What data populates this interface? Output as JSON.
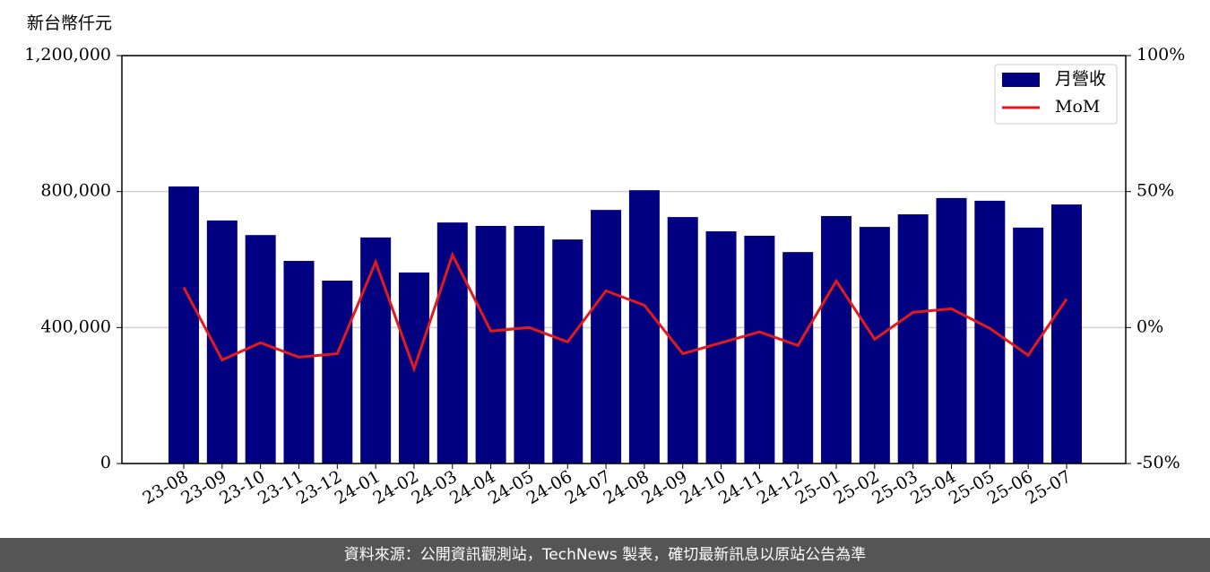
{
  "chart_data": {
    "type": "bar-line",
    "ylabel": "新台幣仟元",
    "footer": "資料來源：公開資訊觀測站，TechNews 製表，確切最新訊息以原站公告為準",
    "categories": [
      "23-08",
      "23-09",
      "23-10",
      "23-11",
      "23-12",
      "24-01",
      "24-02",
      "24-03",
      "24-04",
      "24-05",
      "24-06",
      "24-07",
      "24-08",
      "24-09",
      "24-10",
      "24-11",
      "24-12",
      "25-01",
      "25-02",
      "25-03",
      "25-04",
      "25-05",
      "25-06",
      "25-07"
    ],
    "series": [
      {
        "name": "月營收",
        "type": "bar",
        "color": "#000080",
        "values": [
          815000,
          715000,
          672000,
          596000,
          538000,
          665000,
          562000,
          709000,
          699000,
          699000,
          659000,
          746000,
          804000,
          725000,
          683000,
          670000,
          622000,
          728000,
          696000,
          733000,
          781000,
          773000,
          694000,
          762000
        ]
      },
      {
        "name": "MoM",
        "type": "line",
        "axis": "y2",
        "color": "#e31a1c",
        "values": [
          14.8,
          -11.9,
          -5.6,
          -10.9,
          -9.6,
          24.1,
          -15.2,
          26.7,
          -1.3,
          0,
          -5.3,
          13.5,
          8.2,
          -9.6,
          -5.6,
          -1.6,
          -6.6,
          17.1,
          -4.3,
          5.6,
          6.9,
          -0.3,
          -10.2,
          10.5
        ]
      }
    ],
    "ylim": [
      0,
      1200000
    ],
    "yticks": [
      0,
      {
        "value": 400000,
        "label": "400,000"
      },
      {
        "value": 800000,
        "label": "800,000"
      },
      {
        "value": 1200000,
        "label": "1,200,000"
      }
    ],
    "y2lim": [
      -50,
      100
    ],
    "y2ticks": [
      {
        "value": -50,
        "label": "-50%"
      },
      {
        "value": 0,
        "label": "0%"
      },
      {
        "value": 50,
        "label": "50%"
      },
      {
        "value": 100,
        "label": "100%"
      }
    ],
    "grid": true,
    "legend": "upper right"
  }
}
